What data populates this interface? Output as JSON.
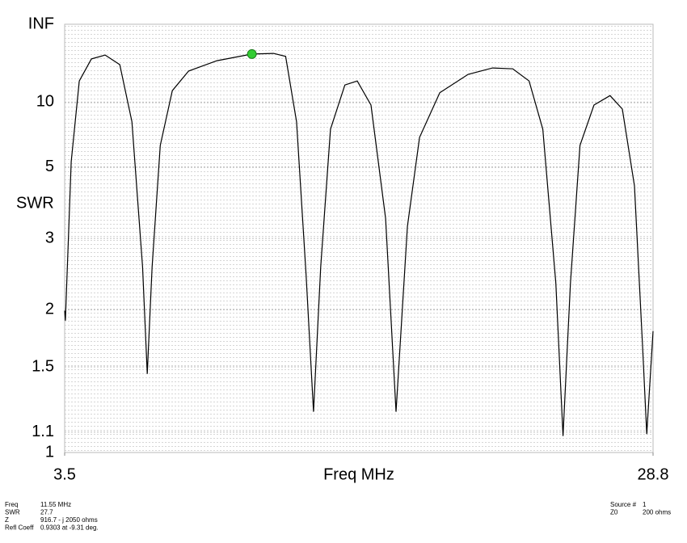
{
  "chart_data": {
    "type": "line",
    "yscale": "reflection",
    "ylabel": "SWR",
    "xlabel": "Freq MHz",
    "x": [
      3.5,
      3.53,
      3.78,
      4.13,
      4.65,
      5.24,
      5.87,
      6.39,
      6.85,
      7.05,
      7.26,
      7.61,
      8.13,
      8.83,
      10.05,
      11.55,
      12.48,
      13.0,
      13.47,
      13.88,
      14.2,
      14.51,
      14.93,
      15.55,
      16.08,
      16.67,
      17.3,
      17.75,
      18.24,
      18.76,
      19.63,
      20.85,
      21.9,
      22.77,
      23.47,
      24.06,
      24.62,
      24.93,
      25.25,
      25.66,
      26.26,
      26.95,
      27.48,
      28.0,
      28.35,
      28.53,
      28.8
    ],
    "series": [
      {
        "color": "#000000",
        "values": [
          1.99,
          1.89,
          5.23,
          14.1,
          23.7,
          26.8,
          20.2,
          7.8,
          2.53,
          1.45,
          2.53,
          6.07,
          11.9,
          17.3,
          22.5,
          27.7,
          28.4,
          25.6,
          7.8,
          2.42,
          1.21,
          2.53,
          7.16,
          13.1,
          14.1,
          9.6,
          3.41,
          1.21,
          3.24,
          6.57,
          11.5,
          16.1,
          18.6,
          18.2,
          14.1,
          7.16,
          2.31,
          1.08,
          2.31,
          6.07,
          9.6,
          11.0,
          9.1,
          4.3,
          1.65,
          1.09,
          1.79
        ]
      }
    ],
    "marker": {
      "x": 11.55,
      "y": 27.7,
      "color": "#33cc33"
    },
    "xlim": [
      3.5,
      28.8
    ],
    "xticks": [
      3.5,
      28.8
    ],
    "ylim": [
      1,
      null
    ],
    "yticks": [
      1,
      1.1,
      1.5,
      2,
      3,
      5,
      10,
      {
        "value": null,
        "label": "INF"
      }
    ],
    "grid": true,
    "info_left": [
      {
        "label": "Freq",
        "value": "11.55 MHz"
      },
      {
        "label": "SWR",
        "value": "27.7"
      },
      {
        "label": "Z",
        "value": "916.7 - j 2050 ohms"
      },
      {
        "label": "Refl Coeff",
        "value": "0.9303 at -9.31 deg."
      }
    ],
    "info_right": [
      {
        "label": "Source #",
        "value": "1"
      },
      {
        "label": "Z0",
        "value": "200 ohms"
      }
    ]
  }
}
